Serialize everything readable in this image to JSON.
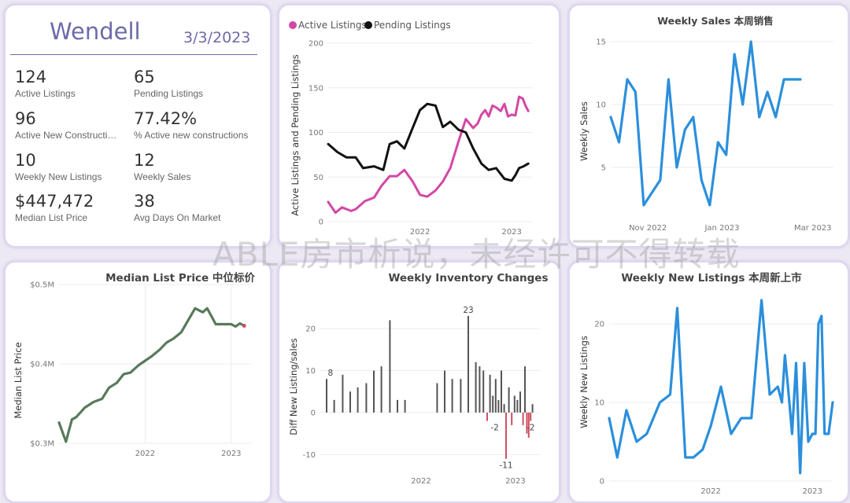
{
  "kpi_card": {
    "title": "Wendell",
    "date": "3/3/2023",
    "metrics": [
      {
        "value": "124",
        "label": "Active Listings"
      },
      {
        "value": "65",
        "label": "Pending Listings"
      },
      {
        "value": "96",
        "label": "Active New Constructions"
      },
      {
        "value": "77.42%",
        "label": "% Active new constructions"
      },
      {
        "value": "10",
        "label": "Weekly New Listings"
      },
      {
        "value": "12",
        "label": "Weekly Sales"
      },
      {
        "value": "$447,472",
        "label": "Median List Price"
      },
      {
        "value": "38",
        "label": "Avg Days On Market"
      }
    ]
  },
  "watermark": "ABLE房市析说，未经许可不得转载",
  "colors": {
    "active": "#d348a5",
    "pending": "#111111",
    "blue": "#2b8fdc",
    "green": "#587a5b",
    "bar": "#555555",
    "neg": "#d04f63"
  },
  "chart_data": [
    {
      "id": "active-pending",
      "type": "line",
      "title": "",
      "ylabel": "Active Listings and Pending Listings",
      "xlabel": "",
      "ylim": [
        0,
        200
      ],
      "yticks": [
        0,
        50,
        100,
        150,
        200
      ],
      "xlim": [
        2021.0,
        2023.23
      ],
      "xticks": [
        {
          "pos": 2022.0,
          "label": "2022"
        },
        {
          "pos": 2023.0,
          "label": "2023"
        }
      ],
      "legend": [
        "Active Listings",
        "Pending Listings"
      ],
      "series": [
        {
          "name": "Active Listings",
          "color": "#d348a5",
          "x": [
            2021.0,
            2021.08,
            2021.15,
            2021.2,
            2021.25,
            2021.3,
            2021.4,
            2021.5,
            2021.58,
            2021.67,
            2021.75,
            2021.83,
            2021.92,
            2022.0,
            2022.08,
            2022.17,
            2022.25,
            2022.33,
            2022.42,
            2022.5,
            2022.58,
            2022.63,
            2022.67,
            2022.71,
            2022.75,
            2022.79,
            2022.83,
            2022.88,
            2022.92,
            2022.96,
            2023.0,
            2023.04,
            2023.08,
            2023.12,
            2023.15,
            2023.18
          ],
          "y": [
            22,
            10,
            16,
            14,
            12,
            14,
            23,
            27,
            40,
            51,
            51,
            58,
            45,
            30,
            28,
            35,
            45,
            60,
            90,
            115,
            105,
            110,
            120,
            125,
            118,
            130,
            128,
            124,
            132,
            118,
            120,
            119,
            140,
            138,
            130,
            124
          ]
        },
        {
          "name": "Pending Listings",
          "color": "#111111",
          "x": [
            2021.0,
            2021.1,
            2021.2,
            2021.3,
            2021.38,
            2021.5,
            2021.6,
            2021.67,
            2021.75,
            2021.83,
            2021.92,
            2022.0,
            2022.08,
            2022.17,
            2022.25,
            2022.33,
            2022.42,
            2022.5,
            2022.58,
            2022.67,
            2022.75,
            2022.83,
            2022.92,
            2023.0,
            2023.04,
            2023.08,
            2023.13,
            2023.18
          ],
          "y": [
            87,
            78,
            72,
            72,
            60,
            62,
            58,
            87,
            90,
            82,
            105,
            125,
            132,
            130,
            106,
            112,
            103,
            100,
            82,
            65,
            58,
            60,
            48,
            46,
            52,
            60,
            62,
            65
          ]
        }
      ]
    },
    {
      "id": "weekly-sales",
      "type": "line",
      "title": "Weekly Sales 本周销售",
      "ylabel": "Weekly Sales",
      "xlabel": "",
      "ylim": [
        1,
        16
      ],
      "yticks": [
        5,
        10,
        15
      ],
      "xlim": [
        0,
        27
      ],
      "xticks": [
        {
          "pos": 4.5,
          "label": "Nov 2022"
        },
        {
          "pos": 13.5,
          "label": "Jan 2023"
        },
        {
          "pos": 24.5,
          "label": "Mar 2023"
        }
      ],
      "series": [
        {
          "name": "Weekly Sales",
          "color": "#2b8fdc",
          "x": [
            0,
            1,
            2,
            3,
            4,
            5,
            6,
            7,
            8,
            9,
            10,
            11,
            12,
            13,
            14,
            15,
            16,
            17,
            18,
            19,
            20,
            21,
            22,
            23
          ],
          "y": [
            9,
            7,
            12,
            11,
            2,
            3,
            4,
            12,
            5,
            8,
            9,
            4,
            2,
            7,
            6,
            14,
            10,
            15,
            9,
            11,
            9,
            12,
            12,
            12
          ]
        }
      ]
    },
    {
      "id": "median-list-price",
      "type": "line",
      "title": "Median List Price 中位标价",
      "ylabel": "Median List Price",
      "xlabel": "",
      "ylim": [
        0.3,
        0.5
      ],
      "yticks": [
        {
          "v": 0.3,
          "label": "$0.3M"
        },
        {
          "v": 0.4,
          "label": "$0.4M"
        },
        {
          "v": 0.5,
          "label": "$0.5M"
        }
      ],
      "xlim": [
        2021.0,
        2023.23
      ],
      "xticks": [
        {
          "pos": 2022.0,
          "label": "2022"
        },
        {
          "pos": 2023.0,
          "label": "2023"
        }
      ],
      "series": [
        {
          "name": "Median List Price",
          "color": "#587a5b",
          "x": [
            2021.0,
            2021.08,
            2021.15,
            2021.2,
            2021.3,
            2021.4,
            2021.5,
            2021.58,
            2021.67,
            2021.75,
            2021.83,
            2021.92,
            2022.0,
            2022.08,
            2022.17,
            2022.25,
            2022.33,
            2022.42,
            2022.5,
            2022.58,
            2022.67,
            2022.72,
            2022.77,
            2022.82,
            2022.88,
            2022.95,
            2023.0,
            2023.05,
            2023.1,
            2023.15
          ],
          "y": [
            0.326,
            0.302,
            0.33,
            0.333,
            0.345,
            0.352,
            0.356,
            0.37,
            0.376,
            0.387,
            0.389,
            0.398,
            0.404,
            0.41,
            0.418,
            0.427,
            0.432,
            0.44,
            0.455,
            0.47,
            0.465,
            0.47,
            0.46,
            0.45,
            0.45,
            0.45,
            0.45,
            0.447,
            0.451,
            0.448
          ]
        }
      ]
    },
    {
      "id": "weekly-inventory",
      "type": "bar",
      "title": "Weekly Inventory Changes",
      "ylabel": "Diff New Listing/sales",
      "xlabel": "",
      "ylim": [
        -12,
        26
      ],
      "yticks": [
        -10,
        0,
        10,
        20
      ],
      "xlim": [
        2021.0,
        2023.2
      ],
      "xticks": [
        {
          "pos": 2022.0,
          "label": "2022"
        },
        {
          "pos": 2023.0,
          "label": "2023"
        }
      ],
      "data_labels": [
        {
          "x": 2021.04,
          "value": 8,
          "text": "8"
        },
        {
          "x": 2022.5,
          "value": 23,
          "text": "23"
        },
        {
          "x": 2022.78,
          "value": -2,
          "text": "-2"
        },
        {
          "x": 2023.16,
          "value": -2,
          "text": "-2"
        },
        {
          "x": 2022.9,
          "value": -11,
          "text": "-11"
        }
      ],
      "series": [
        {
          "name": "Diff New Listing/sales",
          "x": [
            2021.0,
            2021.08,
            2021.17,
            2021.25,
            2021.33,
            2021.42,
            2021.5,
            2021.58,
            2021.67,
            2021.75,
            2021.83,
            2021.92,
            2022.17,
            2022.25,
            2022.33,
            2022.42,
            2022.5,
            2022.58,
            2022.62,
            2022.66,
            2022.7,
            2022.73,
            2022.76,
            2022.79,
            2022.82,
            2022.85,
            2022.88,
            2022.9,
            2022.93,
            2022.96,
            2022.99,
            2023.02,
            2023.05,
            2023.08,
            2023.1,
            2023.12,
            2023.14,
            2023.16,
            2023.18
          ],
          "values": [
            8,
            3,
            9,
            5,
            6,
            7,
            10,
            11,
            22,
            3,
            3,
            0,
            7,
            10,
            8,
            8,
            23,
            12,
            11,
            10,
            -2,
            9,
            4,
            8,
            3,
            10,
            2,
            -11,
            6,
            -3,
            4,
            3,
            5,
            -3,
            11,
            -5,
            -6,
            -2,
            2
          ]
        }
      ]
    },
    {
      "id": "weekly-new-listings",
      "type": "line",
      "title": "Weekly New Listings 本周新上市",
      "ylabel": "Weekly New Listings",
      "xlabel": "",
      "ylim": [
        0,
        23
      ],
      "yticks": [
        0,
        10,
        20
      ],
      "xlim": [
        2021.0,
        2023.2
      ],
      "xticks": [
        {
          "pos": 2022.0,
          "label": "2022"
        },
        {
          "pos": 2023.0,
          "label": "2023"
        }
      ],
      "series": [
        {
          "name": "Weekly New Listings",
          "color": "#2b8fdc",
          "x": [
            2021.0,
            2021.08,
            2021.17,
            2021.27,
            2021.37,
            2021.5,
            2021.6,
            2021.67,
            2021.75,
            2021.83,
            2021.92,
            2022.0,
            2022.1,
            2022.2,
            2022.3,
            2022.4,
            2022.5,
            2022.58,
            2022.66,
            2022.7,
            2022.73,
            2022.76,
            2022.8,
            2022.84,
            2022.88,
            2022.92,
            2022.96,
            2023.0,
            2023.03,
            2023.06,
            2023.09,
            2023.12,
            2023.16,
            2023.2
          ],
          "y": [
            8,
            3,
            9,
            5,
            6,
            10,
            11,
            22,
            3,
            3,
            4,
            7,
            12,
            6,
            8,
            8,
            23,
            11,
            12,
            10,
            16,
            12,
            6,
            15,
            1,
            15,
            5,
            6,
            6,
            20,
            21,
            6,
            6,
            10
          ]
        }
      ]
    }
  ]
}
